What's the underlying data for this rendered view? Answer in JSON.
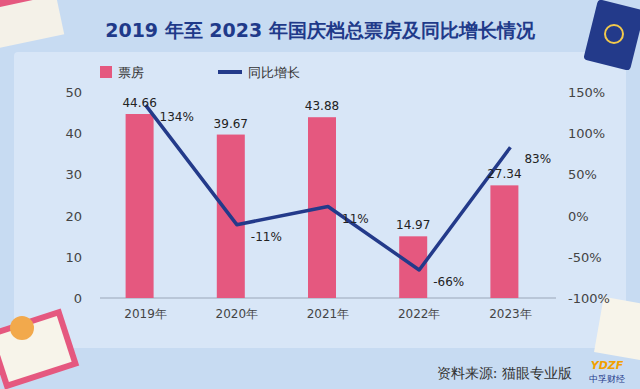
{
  "chart_data": {
    "type": "bar",
    "title": "2019 年至 2023 年国庆档总票房及同比增长情况",
    "categories": [
      "2019年",
      "2020年",
      "2021年",
      "2022年",
      "2023年"
    ],
    "series": [
      {
        "name": "票房",
        "type": "bar",
        "color": "#e5587f",
        "values": [
          44.66,
          39.67,
          43.88,
          14.97,
          27.34
        ]
      },
      {
        "name": "同比增长",
        "type": "line",
        "axis": "y2",
        "color": "#233a8a",
        "values": [
          134,
          -11,
          11,
          -66,
          83
        ],
        "value_labels": [
          "134%",
          "-11%",
          "11%",
          "-66%",
          "83%"
        ]
      }
    ],
    "ylim": [
      0,
      50
    ],
    "yticks": [
      0,
      10,
      20,
      30,
      40,
      50
    ],
    "y2lim": [
      -100,
      150
    ],
    "y2ticks": [
      {
        "value": -100,
        "label": "-100%"
      },
      {
        "value": -50,
        "label": "-50%"
      },
      {
        "value": 0,
        "label": "0%"
      },
      {
        "value": 50,
        "label": "50%"
      },
      {
        "value": 100,
        "label": "100%"
      },
      {
        "value": 150,
        "label": "150%"
      }
    ],
    "grid": false,
    "legend": "top-left",
    "data_labels": true,
    "annotations": [
      "资料来源: 猫眼专业版",
      "YDZF",
      "中孚财经"
    ]
  }
}
